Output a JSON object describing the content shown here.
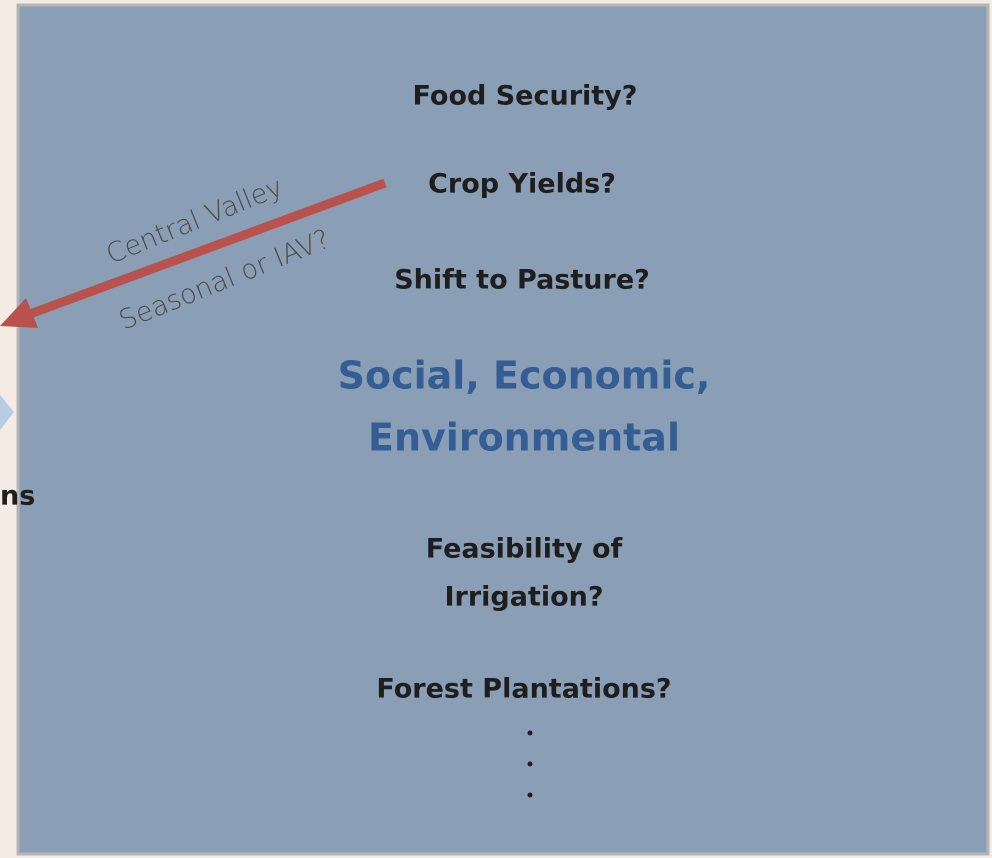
{
  "items": [
    "Food Security?",
    "Crop Yields?",
    "Shift to Pasture?",
    "Feasibility of",
    "Irrigation?",
    "Forest Plantations?"
  ],
  "heading": [
    "Social, Economic,",
    "Environmental"
  ],
  "arrow_labels": [
    "Central Valley",
    "Seasonal or IAV?"
  ],
  "left_fragment": "ns"
}
